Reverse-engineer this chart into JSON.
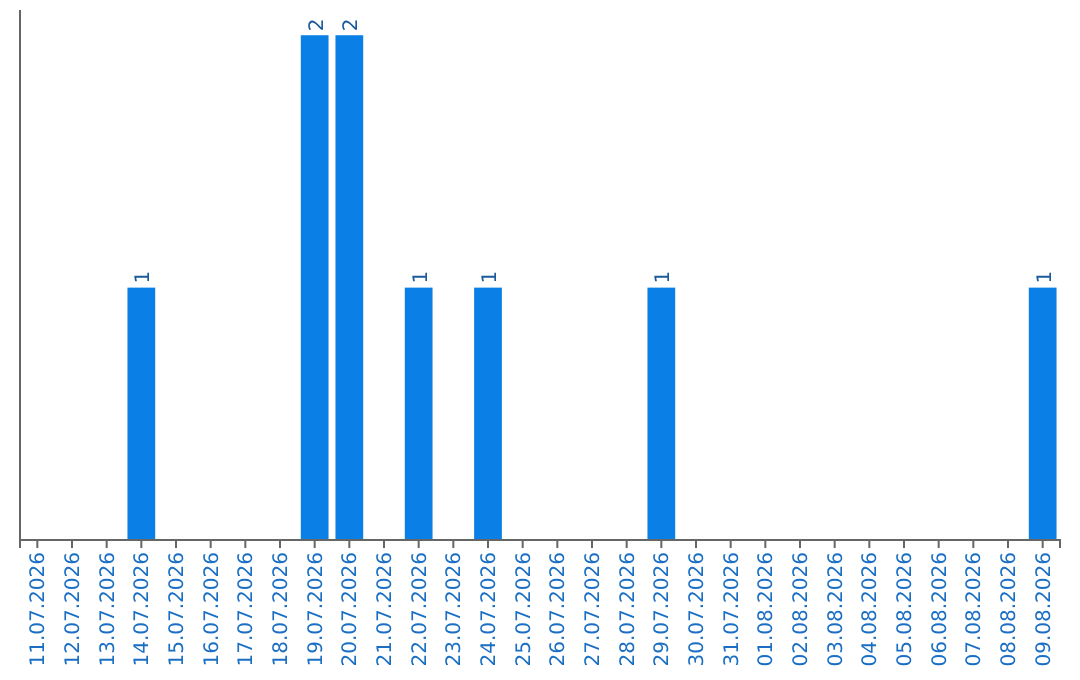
{
  "chart_data": {
    "type": "bar",
    "categories": [
      "11.07.2026",
      "12.07.2026",
      "13.07.2026",
      "14.07.2026",
      "15.07.2026",
      "16.07.2026",
      "17.07.2026",
      "18.07.2026",
      "19.07.2026",
      "20.07.2026",
      "21.07.2026",
      "22.07.2026",
      "23.07.2026",
      "24.07.2026",
      "25.07.2026",
      "26.07.2026",
      "27.07.2026",
      "28.07.2026",
      "29.07.2026",
      "30.07.2026",
      "31.07.2026",
      "01.08.2026",
      "02.08.2026",
      "03.08.2026",
      "04.08.2026",
      "05.08.2026",
      "06.08.2026",
      "07.08.2026",
      "08.08.2026",
      "09.08.2026"
    ],
    "values": [
      0,
      0,
      0,
      1,
      0,
      0,
      0,
      0,
      2,
      2,
      0,
      1,
      0,
      1,
      0,
      0,
      0,
      0,
      1,
      0,
      0,
      0,
      0,
      0,
      0,
      0,
      0,
      0,
      0,
      1
    ],
    "color": "#0a7fe6",
    "ylim": [
      0,
      2.1
    ],
    "value_labels": [
      null,
      null,
      null,
      "1",
      null,
      null,
      null,
      null,
      "2",
      "2",
      null,
      "1",
      null,
      "1",
      null,
      null,
      null,
      null,
      "1",
      null,
      null,
      null,
      null,
      null,
      null,
      null,
      null,
      null,
      null,
      "1"
    ],
    "tick_labels": "x"
  }
}
